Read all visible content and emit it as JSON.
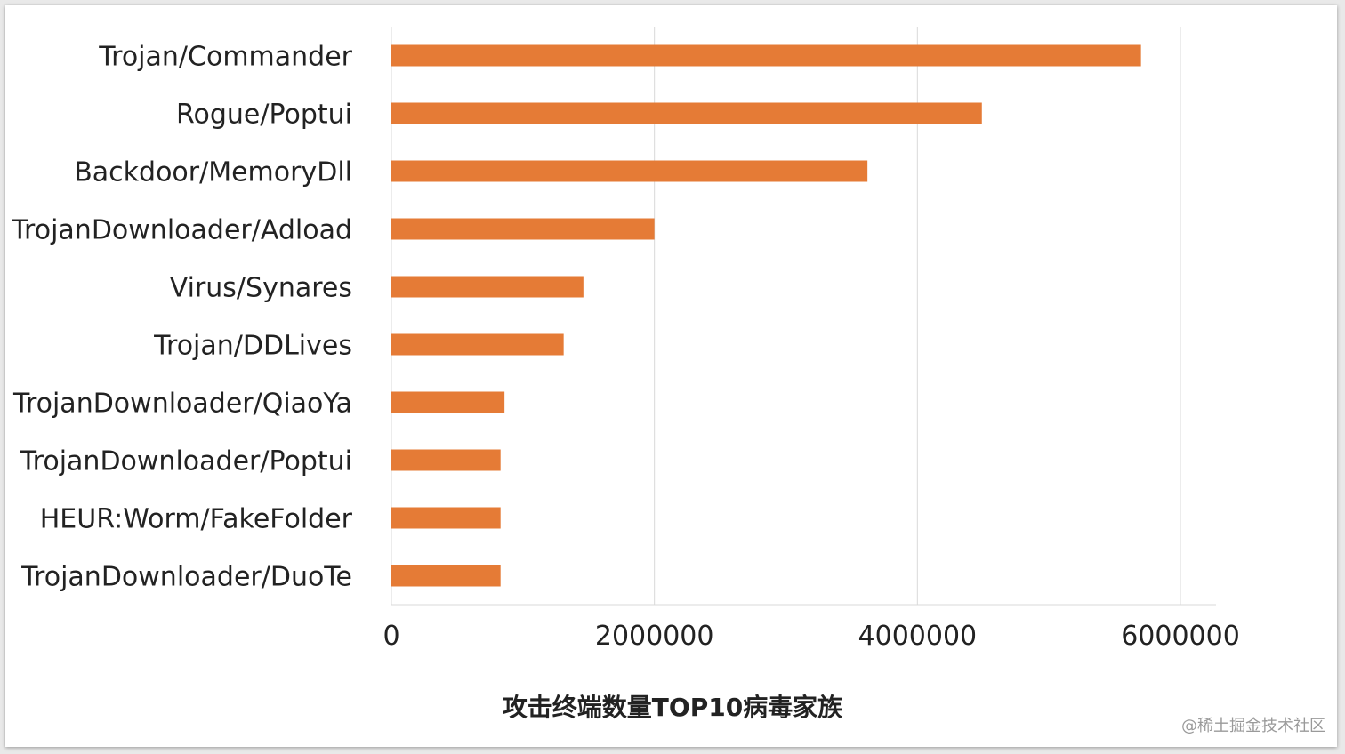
{
  "chart_data": {
    "type": "bar",
    "orientation": "horizontal",
    "title": "攻击终端数量TOP10病毒家族",
    "xlabel": "",
    "ylabel": "",
    "xlim": [
      0,
      6300000
    ],
    "x_ticks": [
      0,
      2000000,
      4000000,
      6000000
    ],
    "x_tick_labels": [
      "0",
      "2000000",
      "4000000",
      "6000000"
    ],
    "grid": "vertical",
    "bar_color": "#E57B36",
    "categories": [
      "Trojan/Commander",
      "Rogue/Poptui",
      "Backdoor/MemoryDll",
      "TrojanDownloader/Adload",
      "Virus/Synares",
      "Trojan/DDLives",
      "TrojanDownloader/QiaoYa",
      "TrojanDownloader/Poptui",
      "HEUR:Worm/FakeFolder",
      "TrojanDownloader/DuoTe"
    ],
    "values": [
      5700000,
      4490000,
      3620000,
      2000000,
      1460000,
      1310000,
      860000,
      830000,
      830000,
      830000
    ]
  },
  "watermark": "@稀土掘金技术社区"
}
